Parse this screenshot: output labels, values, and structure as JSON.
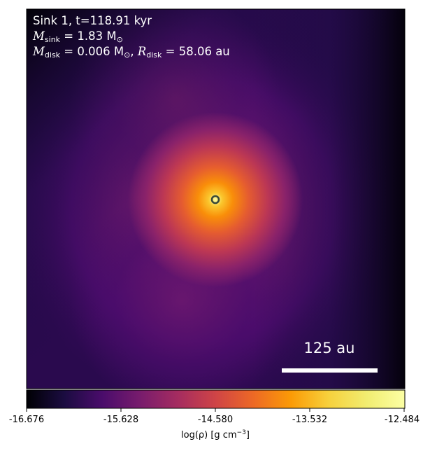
{
  "annotation": {
    "sink_line": "Sink 1, t=118.91 kyr",
    "m_sink_symbol": "M",
    "m_sink_sub": "sink",
    "m_sink_value": "= 1.83 M",
    "m_sink_unit_sub": "⊙",
    "m_disk_symbol": "M",
    "m_disk_sub": "disk",
    "m_disk_value": "= 0.006 M",
    "m_disk_unit_sub": "⊙",
    "r_disk_symbol": "R",
    "r_disk_sub": "disk",
    "r_disk_value": "= 58.06 au"
  },
  "scale_bar": {
    "label": "125 au"
  },
  "colorbar": {
    "label_prefix": "log(ρ) [g cm",
    "label_exp": "−3",
    "label_suffix": "]",
    "ticks": [
      "-16.676",
      "-15.628",
      "-14.580",
      "-13.532",
      "-12.484"
    ],
    "colormap": "inferno"
  },
  "colors": {
    "text_overlay": "#ffffff",
    "sink_marker_ring": "#3a4a3a"
  }
}
